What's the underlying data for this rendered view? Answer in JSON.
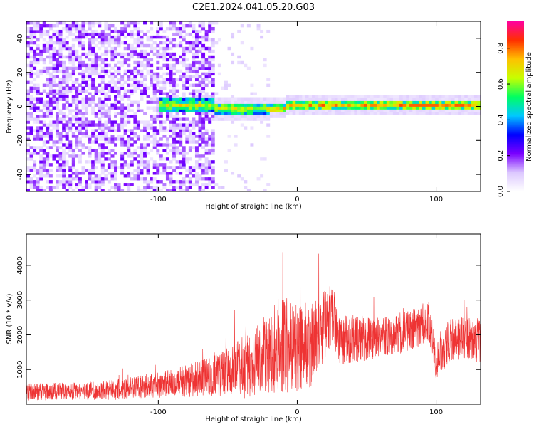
{
  "figure": {
    "title": "C2E1.2024.041.05.20.G03"
  },
  "chart_data": [
    {
      "type": "heatmap",
      "xlabel": "Height of straight line (km)",
      "ylabel": "Frequency (Hz)",
      "xlim": [
        -195,
        132
      ],
      "ylim": [
        -50,
        50
      ],
      "xticks": [
        -100,
        0,
        100
      ],
      "yticks": [
        -40,
        -20,
        0,
        20,
        40
      ],
      "colorbar": {
        "label": "Normalized spectral amplitude",
        "range": [
          0.0,
          0.95
        ],
        "ticks": [
          0.0,
          0.2,
          0.4,
          0.6,
          0.8
        ],
        "colormap": "rainbow",
        "colors": [
          "#ffffff",
          "#dcc8ff",
          "#7a00ff",
          "#0000ff",
          "#00c8ff",
          "#00ff60",
          "#c8ff00",
          "#ffc000",
          "#ff3000",
          "#ff00a0"
        ]
      },
      "features": {
        "noise_region": [
          -195,
          -60
        ],
        "signal_center_hz": 0,
        "signal_start_km": -100
      }
    },
    {
      "type": "line",
      "xlabel": "Height of straight line (km)",
      "ylabel": "SNR (10 * v/v)",
      "xlim": [
        -195,
        132
      ],
      "ylim": [
        0,
        4900
      ],
      "xticks": [
        -100,
        0,
        100
      ],
      "yticks": [
        1000,
        2000,
        3000,
        4000
      ],
      "color": "#ee3333",
      "series": [
        {
          "x": [
            -195,
            -170,
            -150,
            -130,
            -110,
            -90,
            -75,
            -60,
            -50,
            -40,
            -30,
            -20,
            -10,
            0,
            10,
            20,
            26,
            30,
            40,
            60,
            80,
            95,
            100,
            110,
            120,
            132
          ],
          "mean": [
            350,
            370,
            380,
            420,
            500,
            620,
            700,
            800,
            950,
            1050,
            1250,
            1500,
            1800,
            1650,
            1700,
            2300,
            2600,
            1800,
            1900,
            1900,
            2100,
            2400,
            1200,
            1850,
            1900,
            1850
          ],
          "spread": [
            250,
            250,
            250,
            300,
            350,
            400,
            500,
            600,
            700,
            900,
            1000,
            1200,
            1500,
            1300,
            1200,
            1000,
            900,
            700,
            700,
            600,
            600,
            600,
            500,
            600,
            600,
            650
          ]
        }
      ]
    }
  ]
}
